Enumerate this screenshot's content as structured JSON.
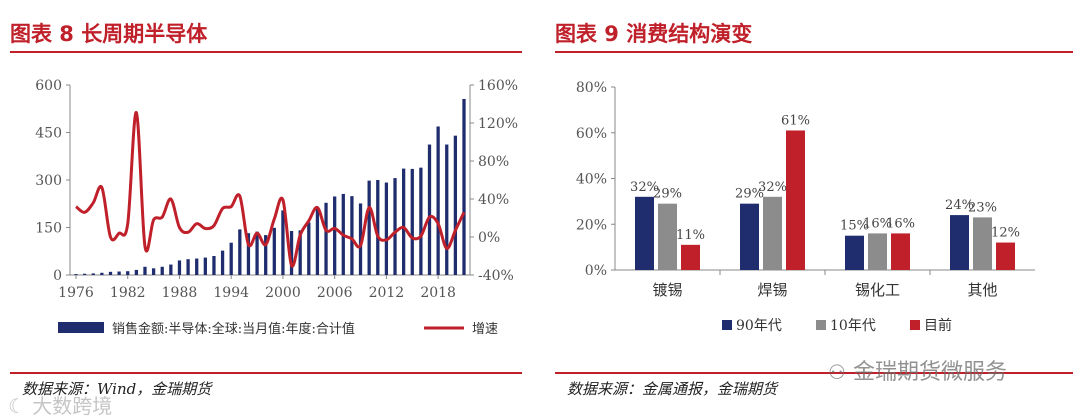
{
  "left": {
    "title": "图表 8 长周期半导体",
    "source": "数据来源：Wind，金瑞期货"
  },
  "right": {
    "title": "图表 9 消费结构演变",
    "source": "数据来源：金属通报，金瑞期货"
  },
  "watermark": {
    "left_text": "大数跨境",
    "right_text": "金瑞期货微服务"
  },
  "colors": {
    "accent": "#c0202a",
    "navy": "#1f2d6e",
    "gray": "#8c8c8c",
    "red": "#c0202a"
  },
  "chart_data": [
    {
      "type": "bar+line",
      "title": "",
      "x": [
        1976,
        1977,
        1978,
        1979,
        1980,
        1981,
        1982,
        1983,
        1984,
        1985,
        1986,
        1987,
        1988,
        1989,
        1990,
        1991,
        1992,
        1993,
        1994,
        1995,
        1996,
        1997,
        1998,
        1999,
        2000,
        2001,
        2002,
        2003,
        2004,
        2005,
        2006,
        2007,
        2008,
        2009,
        2010,
        2011,
        2012,
        2013,
        2014,
        2015,
        2016,
        2017,
        2018,
        2019,
        2020,
        2021
      ],
      "x_ticks": [
        "1976",
        "1982",
        "1988",
        "1994",
        "2000",
        "2006",
        "2012",
        "2018"
      ],
      "y_left_ticks": [
        "0",
        "150",
        "300",
        "450",
        "600"
      ],
      "y_left_lim": [
        0,
        600
      ],
      "y_right_ticks": [
        "-40%",
        "0%",
        "40%",
        "80%",
        "120%",
        "160%"
      ],
      "y_right_lim": [
        -40,
        160
      ],
      "series": [
        {
          "name": "销售金额:半导体:全球:当月值:年度:合计值",
          "kind": "bar",
          "axis": "left",
          "color": "#1f2d6e",
          "values": [
            3,
            4,
            5,
            7,
            10,
            11,
            12,
            16,
            26,
            21,
            26,
            33,
            46,
            50,
            52,
            55,
            60,
            77,
            102,
            144,
            132,
            137,
            126,
            149,
            204,
            139,
            141,
            166,
            213,
            228,
            248,
            256,
            249,
            226,
            298,
            300,
            292,
            306,
            336,
            335,
            339,
            412,
            469,
            412,
            440,
            556
          ]
        },
        {
          "name": "增速",
          "kind": "line",
          "axis": "right",
          "color": "#c0202a",
          "values": [
            32,
            26,
            36,
            52,
            0,
            4,
            14,
            131,
            -10,
            18,
            21,
            40,
            10,
            5,
            14,
            9,
            12,
            30,
            32,
            43,
            -8,
            4,
            -8,
            19,
            39,
            -30,
            2,
            17,
            31,
            7,
            9,
            2,
            -2,
            -9,
            31,
            1,
            -3,
            5,
            10,
            -1,
            1,
            21,
            14,
            -12,
            7,
            26
          ]
        }
      ],
      "legend_placement": "bottom"
    },
    {
      "type": "bar",
      "title": "",
      "categories": [
        "镀锡",
        "焊锡",
        "锡化工",
        "其他"
      ],
      "y_ticks": [
        "0%",
        "20%",
        "40%",
        "60%",
        "80%"
      ],
      "ylim": [
        0,
        80
      ],
      "series": [
        {
          "name": "90年代",
          "color": "#1f2d6e",
          "values": [
            32,
            29,
            15,
            24
          ],
          "labels": [
            "32%",
            "29%",
            "15%",
            "24%"
          ]
        },
        {
          "name": "10年代",
          "color": "#8c8c8c",
          "values": [
            29,
            32,
            16,
            23
          ],
          "labels": [
            "29%",
            "32%",
            "16%",
            "23%"
          ]
        },
        {
          "name": "目前",
          "color": "#c0202a",
          "values": [
            11,
            61,
            16,
            12
          ],
          "labels": [
            "11%",
            "61%",
            "16%",
            "12%"
          ]
        }
      ],
      "legend_placement": "bottom"
    }
  ]
}
